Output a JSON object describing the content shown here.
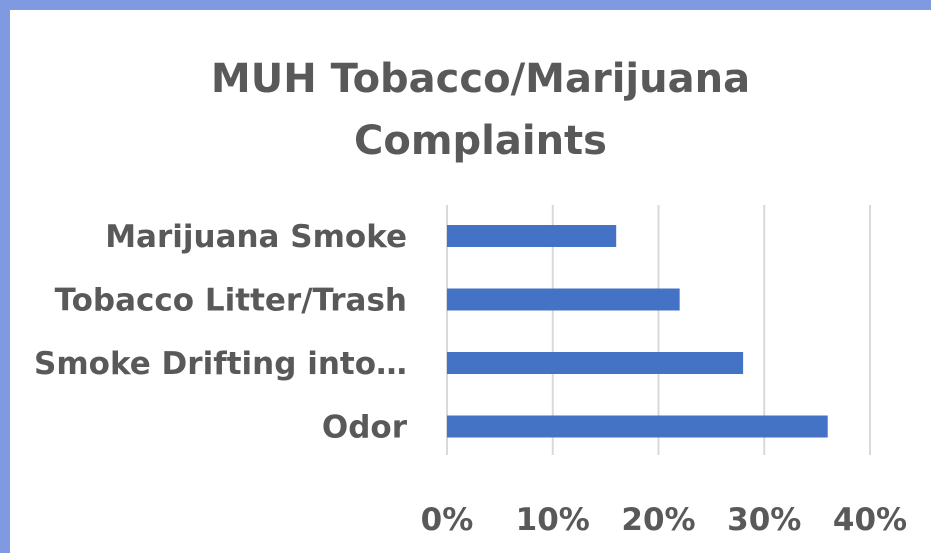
{
  "chart_data": {
    "type": "bar",
    "orientation": "horizontal",
    "title_lines": [
      "MUH Tobacco/Marijuana",
      "Complaints"
    ],
    "categories": [
      "Marijuana Smoke",
      "Tobacco Litter/Trash",
      "Smoke Drifting into…",
      "Odor"
    ],
    "values": [
      16,
      22,
      28,
      36
    ],
    "value_unit": "%",
    "xlim": [
      0,
      40
    ],
    "xticks": [
      "0%",
      "10%",
      "20%",
      "30%",
      "40%"
    ],
    "xtick_values": [
      0,
      10,
      20,
      30,
      40
    ],
    "grid": true,
    "legend": "none",
    "bar_color": "#4472c4",
    "grid_color": "#d9d9d9"
  }
}
